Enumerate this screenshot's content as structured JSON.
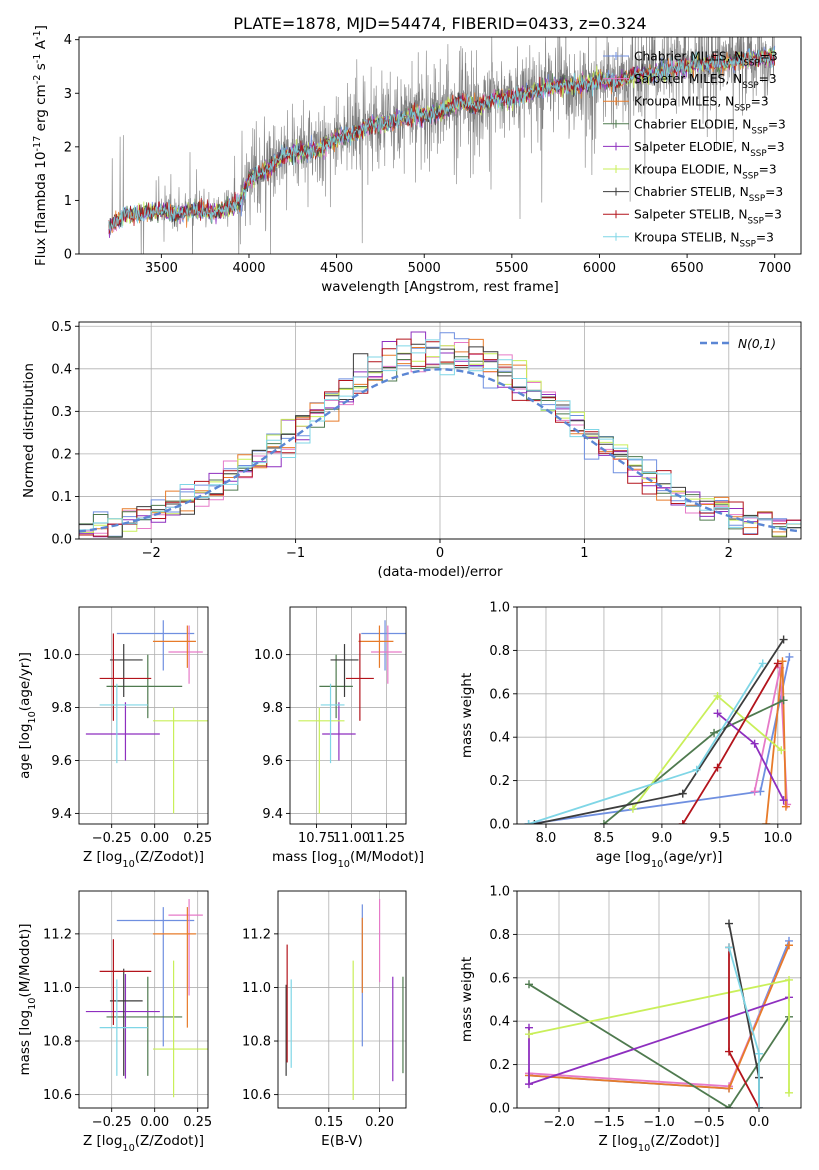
{
  "figure": {
    "title": "PLATE=1878, MJD=54474, FIBERID=0433, z=0.324"
  },
  "colors": {
    "Chabrier MILES": "#6f8fe0",
    "Salpeter MILES": "#e67ac8",
    "Kroupa MILES": "#e77b2a",
    "Chabrier ELODIE": "#4f7a4f",
    "Salpeter ELODIE": "#8e2fbf",
    "Kroupa ELODIE": "#c9ef59",
    "Chabrier STELIB": "#3c3c3c",
    "Salpeter STELIB": "#b3141c",
    "Kroupa STELIB": "#7fd6e6",
    "normal": "#5b86d4",
    "data": "#7f7f7f"
  },
  "chart_data": [
    {
      "id": "spectrum",
      "type": "line",
      "title": "PLATE=1878, MJD=54474, FIBERID=0433, z=0.324",
      "xlabel": "wavelength [Angstrom, rest frame]",
      "ylabel": "Flux [f$_\\lambda$ 10$^{-17}$ erg cm$^{-2}$ s$^{-1}$ A$^{-1}$]",
      "xlim": [
        3030,
        7150
      ],
      "ylim": [
        0,
        4.05
      ],
      "xticks": [
        3500,
        4000,
        4500,
        5000,
        5500,
        6000,
        6500,
        7000
      ],
      "yticks": [
        0,
        1,
        2,
        3,
        4
      ],
      "grid": false,
      "legend_position": "upper right",
      "continuum": {
        "x": [
          3200,
          3300,
          3400,
          3500,
          3600,
          3700,
          3800,
          3900,
          3950,
          4000,
          4100,
          4200,
          4300,
          4400,
          4500,
          4600,
          4700,
          4800,
          4900,
          5000,
          5100,
          5200,
          5300,
          5400,
          5500,
          5600,
          5700,
          5800,
          5900,
          6000,
          6100,
          6200,
          6300,
          6400,
          6500,
          6600,
          6700,
          6800,
          6900,
          7000
        ],
        "y": [
          0.55,
          0.78,
          0.82,
          0.85,
          0.8,
          0.88,
          0.8,
          0.95,
          1.0,
          1.45,
          1.6,
          1.9,
          1.95,
          2.0,
          2.2,
          2.3,
          2.45,
          2.5,
          2.6,
          2.65,
          2.7,
          2.9,
          2.8,
          2.95,
          2.95,
          3.05,
          3.15,
          3.2,
          3.2,
          3.3,
          3.25,
          3.4,
          3.4,
          3.5,
          3.55,
          3.6,
          3.6,
          3.65,
          3.7,
          3.72
        ]
      },
      "data_range": [
        3200,
        7000
      ],
      "series": [
        {
          "name": "Chabrier MILES, N$_{SSP}$=3"
        },
        {
          "name": "Salpeter MILES, N$_{SSP}$=3"
        },
        {
          "name": "Kroupa MILES, N$_{SSP}$=3"
        },
        {
          "name": "Chabrier ELODIE, N$_{SSP}$=3"
        },
        {
          "name": "Salpeter ELODIE, N$_{SSP}$=3"
        },
        {
          "name": "Kroupa ELODIE, N$_{SSP}$=3"
        },
        {
          "name": "Chabrier STELIB, N$_{SSP}$=3"
        },
        {
          "name": "Salpeter STELIB, N$_{SSP}$=3"
        },
        {
          "name": "Kroupa STELIB, N$_{SSP}$=3"
        }
      ]
    },
    {
      "id": "residuals",
      "type": "line",
      "xlabel": "(data-model)/error",
      "ylabel": "Normed distribution",
      "xlim": [
        -2.5,
        2.5
      ],
      "ylim": [
        0,
        0.51
      ],
      "xticks": [
        -2,
        -1,
        0,
        1,
        2
      ],
      "yticks": [
        0.0,
        0.1,
        0.2,
        0.3,
        0.4,
        0.5
      ],
      "grid": true,
      "legend_position": "upper right",
      "legend": [
        "$\\mathcal{N}(0,1)$"
      ],
      "bin_width": 0.1
    },
    {
      "id": "age_vs_Z",
      "type": "scatter",
      "xlabel": "Z [log$_{10}$(Z/Z$_\\odot$)]",
      "ylabel": "age  [log$_{10}$(age/yr)]",
      "xlim": [
        -0.44,
        0.31
      ],
      "ylim": [
        9.36,
        10.18
      ],
      "xticks": [
        -0.25,
        0.0,
        0.25
      ],
      "yticks": [
        9.4,
        9.6,
        9.8,
        10.0
      ],
      "grid": true,
      "points": [
        {
          "model": "Chabrier MILES",
          "x": 0.05,
          "y": 10.08,
          "xerr": [
            0.27,
            0.18
          ],
          "yerr": [
            0.14,
            0.05
          ]
        },
        {
          "model": "Salpeter MILES",
          "x": 0.2,
          "y": 10.01,
          "xerr": [
            0.12,
            0.08
          ],
          "yerr": [
            0.12,
            0.1
          ]
        },
        {
          "model": "Kroupa MILES",
          "x": 0.19,
          "y": 10.05,
          "xerr": [
            0.2,
            0.05
          ],
          "yerr": [
            0.1,
            0.06
          ]
        },
        {
          "model": "Chabrier ELODIE",
          "x": -0.04,
          "y": 9.88,
          "xerr": [
            0.24,
            0.2
          ],
          "yerr": [
            0.12,
            0.12
          ]
        },
        {
          "model": "Salpeter ELODIE",
          "x": -0.17,
          "y": 9.7,
          "xerr": [
            0.23,
            0.2
          ],
          "yerr": [
            0.1,
            0.12
          ]
        },
        {
          "model": "Kroupa ELODIE",
          "x": 0.11,
          "y": 9.75,
          "xerr": [
            0.12,
            0.2
          ],
          "yerr": [
            0.35,
            0.05
          ]
        },
        {
          "model": "Chabrier STELIB",
          "x": -0.18,
          "y": 9.98,
          "xerr": [
            0.08,
            0.11
          ],
          "yerr": [
            0.14,
            0.06
          ]
        },
        {
          "model": "Salpeter STELIB",
          "x": -0.24,
          "y": 9.91,
          "xerr": [
            0.08,
            0.22
          ],
          "yerr": [
            0.16,
            0.17
          ]
        },
        {
          "model": "Kroupa STELIB",
          "x": -0.22,
          "y": 9.81,
          "xerr": [
            0.1,
            0.18
          ],
          "yerr": [
            0.22,
            0.08
          ]
        }
      ]
    },
    {
      "id": "age_vs_mass",
      "type": "scatter",
      "xlabel": "mass [log$_{10}$(M/M$_\\odot$)]",
      "ylabel": "",
      "xlim": [
        10.56,
        11.39
      ],
      "ylim": [
        9.36,
        10.18
      ],
      "xticks": [
        10.75,
        11.0,
        11.25
      ],
      "yticks": [
        9.4,
        9.6,
        9.8,
        10.0
      ],
      "grid": true,
      "points": [
        {
          "model": "Chabrier MILES",
          "x": 11.24,
          "y": 10.08,
          "xerr": [
            0.17,
            0.15
          ],
          "yerr": [
            0.14,
            0.05
          ]
        },
        {
          "model": "Salpeter MILES",
          "x": 11.26,
          "y": 10.01,
          "xerr": [
            0.12,
            0.1
          ],
          "yerr": [
            0.12,
            0.1
          ]
        },
        {
          "model": "Kroupa MILES",
          "x": 11.2,
          "y": 10.05,
          "xerr": [
            0.15,
            0.1
          ],
          "yerr": [
            0.1,
            0.06
          ]
        },
        {
          "model": "Chabrier ELODIE",
          "x": 10.89,
          "y": 9.88,
          "xerr": [
            0.12,
            0.12
          ],
          "yerr": [
            0.12,
            0.12
          ]
        },
        {
          "model": "Salpeter ELODIE",
          "x": 10.91,
          "y": 9.7,
          "xerr": [
            0.12,
            0.12
          ],
          "yerr": [
            0.1,
            0.12
          ]
        },
        {
          "model": "Kroupa ELODIE",
          "x": 10.77,
          "y": 9.75,
          "xerr": [
            0.15,
            0.18
          ],
          "yerr": [
            0.35,
            0.05
          ]
        },
        {
          "model": "Chabrier STELIB",
          "x": 10.95,
          "y": 9.98,
          "xerr": [
            0.1,
            0.1
          ],
          "yerr": [
            0.14,
            0.06
          ]
        },
        {
          "model": "Salpeter STELIB",
          "x": 11.06,
          "y": 9.91,
          "xerr": [
            0.1,
            0.1
          ],
          "yerr": [
            0.16,
            0.17
          ]
        },
        {
          "model": "Kroupa STELIB",
          "x": 10.85,
          "y": 9.81,
          "xerr": [
            0.07,
            0.1
          ],
          "yerr": [
            0.22,
            0.08
          ]
        }
      ]
    },
    {
      "id": "weight_vs_age",
      "type": "line",
      "xlabel": "age  [log$_{10}$(age/yr)]",
      "ylabel": "mass weight",
      "xlim": [
        7.75,
        10.2
      ],
      "ylim": [
        0,
        1.0
      ],
      "xticks": [
        8.0,
        8.5,
        9.0,
        9.5,
        10.0
      ],
      "yticks": [
        0.0,
        0.2,
        0.4,
        0.6,
        0.8,
        1.0
      ],
      "grid": true,
      "series": [
        {
          "model": "Chabrier MILES",
          "x": [
            7.85,
            9.85,
            10.1
          ],
          "y": [
            0.0,
            0.15,
            0.77
          ]
        },
        {
          "model": "Salpeter MILES",
          "x": [
            9.8,
            10.02,
            10.08
          ],
          "y": [
            0.15,
            0.72,
            0.09
          ]
        },
        {
          "model": "Kroupa MILES",
          "x": [
            9.9,
            10.04,
            10.07
          ],
          "y": [
            0.0,
            0.75,
            0.08
          ]
        },
        {
          "model": "Chabrier ELODIE",
          "x": [
            8.5,
            9.45,
            10.05
          ],
          "y": [
            0.0,
            0.42,
            0.57
          ]
        },
        {
          "model": "Salpeter ELODIE",
          "x": [
            9.48,
            9.8,
            10.05
          ],
          "y": [
            0.51,
            0.37,
            0.11
          ]
        },
        {
          "model": "Kroupa ELODIE",
          "x": [
            8.75,
            9.48,
            10.03
          ],
          "y": [
            0.07,
            0.59,
            0.34
          ]
        },
        {
          "model": "Chabrier STELIB",
          "x": [
            7.9,
            9.18,
            10.05
          ],
          "y": [
            0.0,
            0.14,
            0.85
          ]
        },
        {
          "model": "Salpeter STELIB",
          "x": [
            9.18,
            9.48,
            10.0
          ],
          "y": [
            0.0,
            0.26,
            0.74
          ]
        },
        {
          "model": "Kroupa STELIB",
          "x": [
            7.85,
            9.3,
            9.87
          ],
          "y": [
            0.0,
            0.25,
            0.74
          ]
        }
      ]
    },
    {
      "id": "mass_vs_Z",
      "type": "scatter",
      "xlabel": "Z [log$_{10}$(Z/Z$_\\odot$)]",
      "ylabel": "mass [log$_{10}$(M/M$_\\odot$)]",
      "xlim": [
        -0.44,
        0.31
      ],
      "ylim": [
        10.55,
        11.36
      ],
      "xticks": [
        -0.25,
        0.0,
        0.25
      ],
      "yticks": [
        10.6,
        10.8,
        11.0,
        11.2
      ],
      "grid": true,
      "points": [
        {
          "model": "Chabrier MILES",
          "x": 0.05,
          "y": 11.25,
          "xerr": [
            0.27,
            0.18
          ],
          "yerr": [
            0.47,
            0.05
          ]
        },
        {
          "model": "Salpeter MILES",
          "x": 0.2,
          "y": 11.27,
          "xerr": [
            0.12,
            0.08
          ],
          "yerr": [
            0.3,
            0.06
          ]
        },
        {
          "model": "Kroupa MILES",
          "x": 0.19,
          "y": 11.2,
          "xerr": [
            0.2,
            0.05
          ],
          "yerr": [
            0.35,
            0.1
          ]
        },
        {
          "model": "Chabrier ELODIE",
          "x": -0.04,
          "y": 10.89,
          "xerr": [
            0.24,
            0.2
          ],
          "yerr": [
            0.22,
            0.15
          ]
        },
        {
          "model": "Salpeter ELODIE",
          "x": -0.17,
          "y": 10.91,
          "xerr": [
            0.23,
            0.2
          ],
          "yerr": [
            0.25,
            0.14
          ]
        },
        {
          "model": "Kroupa ELODIE",
          "x": 0.11,
          "y": 10.77,
          "xerr": [
            0.12,
            0.2
          ],
          "yerr": [
            0.18,
            0.33
          ]
        },
        {
          "model": "Chabrier STELIB",
          "x": -0.18,
          "y": 10.95,
          "xerr": [
            0.08,
            0.11
          ],
          "yerr": [
            0.28,
            0.12
          ]
        },
        {
          "model": "Salpeter STELIB",
          "x": -0.24,
          "y": 11.06,
          "xerr": [
            0.08,
            0.22
          ],
          "yerr": [
            0.2,
            0.12
          ]
        },
        {
          "model": "Kroupa STELIB",
          "x": -0.22,
          "y": 10.85,
          "xerr": [
            0.1,
            0.18
          ],
          "yerr": [
            0.18,
            0.18
          ]
        }
      ]
    },
    {
      "id": "mass_vs_EBV",
      "type": "scatter",
      "xlabel": "E(B-V)",
      "ylabel": "",
      "xlim": [
        0.1,
        0.226
      ],
      "ylim": [
        10.55,
        11.36
      ],
      "xticks": [
        0.15,
        0.2
      ],
      "yticks": [
        10.6,
        10.8,
        11.0,
        11.2
      ],
      "grid": true,
      "points": [
        {
          "model": "Chabrier MILES",
          "x": 0.183,
          "y": 10.93,
          "yerr": [
            0.15,
            0.38
          ]
        },
        {
          "model": "Salpeter MILES",
          "x": 0.2,
          "y": 11.12,
          "yerr": [
            0.1,
            0.21
          ]
        },
        {
          "model": "Kroupa MILES",
          "x": 0.183,
          "y": 11.08,
          "yerr": [
            0.1,
            0.18
          ]
        },
        {
          "model": "Chabrier ELODIE",
          "x": 0.223,
          "y": 10.86,
          "yerr": [
            0.18,
            0.18
          ]
        },
        {
          "model": "Salpeter ELODIE",
          "x": 0.213,
          "y": 10.86,
          "yerr": [
            0.21,
            0.18
          ]
        },
        {
          "model": "Kroupa ELODIE",
          "x": 0.174,
          "y": 10.84,
          "yerr": [
            0.26,
            0.26
          ]
        },
        {
          "model": "Chabrier STELIB",
          "x": 0.108,
          "y": 10.85,
          "yerr": [
            0.18,
            0.16
          ]
        },
        {
          "model": "Salpeter STELIB",
          "x": 0.109,
          "y": 10.95,
          "yerr": [
            0.23,
            0.21
          ]
        },
        {
          "model": "Kroupa STELIB",
          "x": 0.113,
          "y": 10.86,
          "yerr": [
            0.16,
            0.17
          ]
        }
      ]
    },
    {
      "id": "weight_vs_Z",
      "type": "line",
      "xlabel": "Z [log$_{10}$(Z/Z$_\\odot$)]",
      "ylabel": "mass weight",
      "xlim": [
        -2.42,
        0.42
      ],
      "ylim": [
        0,
        1.0
      ],
      "xticks": [
        -2.0,
        -1.5,
        -1.0,
        -0.5,
        0.0
      ],
      "yticks": [
        0.0,
        0.2,
        0.4,
        0.6,
        0.8,
        1.0
      ],
      "grid": true,
      "series": [
        {
          "model": "Chabrier MILES",
          "x": [
            -2.3,
            -0.3,
            0.3
          ],
          "y": [
            0.15,
            0.09,
            0.77
          ]
        },
        {
          "model": "Salpeter MILES",
          "x": [
            -2.3,
            -0.3,
            0.3
          ],
          "y": [
            0.16,
            0.1,
            0.75
          ]
        },
        {
          "model": "Kroupa MILES",
          "x": [
            -2.3,
            -0.3,
            0.3
          ],
          "y": [
            0.15,
            0.09,
            0.75
          ]
        },
        {
          "model": "Chabrier ELODIE",
          "x": [
            -2.3,
            -0.3,
            0.3
          ],
          "y": [
            0.57,
            0.0,
            0.42
          ]
        },
        {
          "model": "Salpeter ELODIE",
          "x": [
            -2.3,
            -2.3,
            0.3
          ],
          "y": [
            0.37,
            0.11,
            0.51
          ]
        },
        {
          "model": "Kroupa ELODIE",
          "x": [
            -2.3,
            0.3,
            0.3
          ],
          "y": [
            0.34,
            0.59,
            0.07
          ]
        },
        {
          "model": "Chabrier STELIB",
          "x": [
            -0.3,
            0.0,
            0.0
          ],
          "y": [
            0.85,
            0.14,
            0.0
          ]
        },
        {
          "model": "Salpeter STELIB",
          "x": [
            -0.3,
            -0.3,
            0.0
          ],
          "y": [
            0.74,
            0.26,
            0.0
          ]
        },
        {
          "model": "Kroupa STELIB",
          "x": [
            -0.3,
            0.0,
            0.0
          ],
          "y": [
            0.74,
            0.25,
            0.0
          ]
        }
      ]
    }
  ]
}
